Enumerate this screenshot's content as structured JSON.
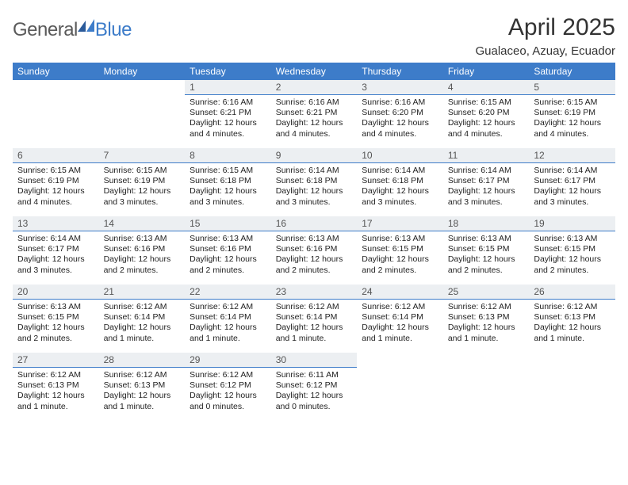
{
  "logo": {
    "general": "General",
    "blue": "Blue"
  },
  "title": "April 2025",
  "subtitle": "Gualaceo, Azuay, Ecuador",
  "colors": {
    "header_bg": "#3d7cc9",
    "header_fg": "#ffffff",
    "daynum_bg": "#eceff2",
    "daynum_border": "#3d7cc9",
    "page_bg": "#ffffff",
    "text": "#222222",
    "logo_gray": "#5a5a5a",
    "logo_blue": "#3d7cc9"
  },
  "day_headers": [
    "Sunday",
    "Monday",
    "Tuesday",
    "Wednesday",
    "Thursday",
    "Friday",
    "Saturday"
  ],
  "weeks": [
    [
      null,
      null,
      {
        "n": "1",
        "sr": "6:16 AM",
        "ss": "6:21 PM",
        "dl": "12 hours and 4 minutes."
      },
      {
        "n": "2",
        "sr": "6:16 AM",
        "ss": "6:21 PM",
        "dl": "12 hours and 4 minutes."
      },
      {
        "n": "3",
        "sr": "6:16 AM",
        "ss": "6:20 PM",
        "dl": "12 hours and 4 minutes."
      },
      {
        "n": "4",
        "sr": "6:15 AM",
        "ss": "6:20 PM",
        "dl": "12 hours and 4 minutes."
      },
      {
        "n": "5",
        "sr": "6:15 AM",
        "ss": "6:19 PM",
        "dl": "12 hours and 4 minutes."
      }
    ],
    [
      {
        "n": "6",
        "sr": "6:15 AM",
        "ss": "6:19 PM",
        "dl": "12 hours and 4 minutes."
      },
      {
        "n": "7",
        "sr": "6:15 AM",
        "ss": "6:19 PM",
        "dl": "12 hours and 3 minutes."
      },
      {
        "n": "8",
        "sr": "6:15 AM",
        "ss": "6:18 PM",
        "dl": "12 hours and 3 minutes."
      },
      {
        "n": "9",
        "sr": "6:14 AM",
        "ss": "6:18 PM",
        "dl": "12 hours and 3 minutes."
      },
      {
        "n": "10",
        "sr": "6:14 AM",
        "ss": "6:18 PM",
        "dl": "12 hours and 3 minutes."
      },
      {
        "n": "11",
        "sr": "6:14 AM",
        "ss": "6:17 PM",
        "dl": "12 hours and 3 minutes."
      },
      {
        "n": "12",
        "sr": "6:14 AM",
        "ss": "6:17 PM",
        "dl": "12 hours and 3 minutes."
      }
    ],
    [
      {
        "n": "13",
        "sr": "6:14 AM",
        "ss": "6:17 PM",
        "dl": "12 hours and 3 minutes."
      },
      {
        "n": "14",
        "sr": "6:13 AM",
        "ss": "6:16 PM",
        "dl": "12 hours and 2 minutes."
      },
      {
        "n": "15",
        "sr": "6:13 AM",
        "ss": "6:16 PM",
        "dl": "12 hours and 2 minutes."
      },
      {
        "n": "16",
        "sr": "6:13 AM",
        "ss": "6:16 PM",
        "dl": "12 hours and 2 minutes."
      },
      {
        "n": "17",
        "sr": "6:13 AM",
        "ss": "6:15 PM",
        "dl": "12 hours and 2 minutes."
      },
      {
        "n": "18",
        "sr": "6:13 AM",
        "ss": "6:15 PM",
        "dl": "12 hours and 2 minutes."
      },
      {
        "n": "19",
        "sr": "6:13 AM",
        "ss": "6:15 PM",
        "dl": "12 hours and 2 minutes."
      }
    ],
    [
      {
        "n": "20",
        "sr": "6:13 AM",
        "ss": "6:15 PM",
        "dl": "12 hours and 2 minutes."
      },
      {
        "n": "21",
        "sr": "6:12 AM",
        "ss": "6:14 PM",
        "dl": "12 hours and 1 minute."
      },
      {
        "n": "22",
        "sr": "6:12 AM",
        "ss": "6:14 PM",
        "dl": "12 hours and 1 minute."
      },
      {
        "n": "23",
        "sr": "6:12 AM",
        "ss": "6:14 PM",
        "dl": "12 hours and 1 minute."
      },
      {
        "n": "24",
        "sr": "6:12 AM",
        "ss": "6:14 PM",
        "dl": "12 hours and 1 minute."
      },
      {
        "n": "25",
        "sr": "6:12 AM",
        "ss": "6:13 PM",
        "dl": "12 hours and 1 minute."
      },
      {
        "n": "26",
        "sr": "6:12 AM",
        "ss": "6:13 PM",
        "dl": "12 hours and 1 minute."
      }
    ],
    [
      {
        "n": "27",
        "sr": "6:12 AM",
        "ss": "6:13 PM",
        "dl": "12 hours and 1 minute."
      },
      {
        "n": "28",
        "sr": "6:12 AM",
        "ss": "6:13 PM",
        "dl": "12 hours and 1 minute."
      },
      {
        "n": "29",
        "sr": "6:12 AM",
        "ss": "6:12 PM",
        "dl": "12 hours and 0 minutes."
      },
      {
        "n": "30",
        "sr": "6:11 AM",
        "ss": "6:12 PM",
        "dl": "12 hours and 0 minutes."
      },
      null,
      null,
      null
    ]
  ],
  "labels": {
    "sunrise": "Sunrise:",
    "sunset": "Sunset:",
    "daylight": "Daylight:"
  }
}
